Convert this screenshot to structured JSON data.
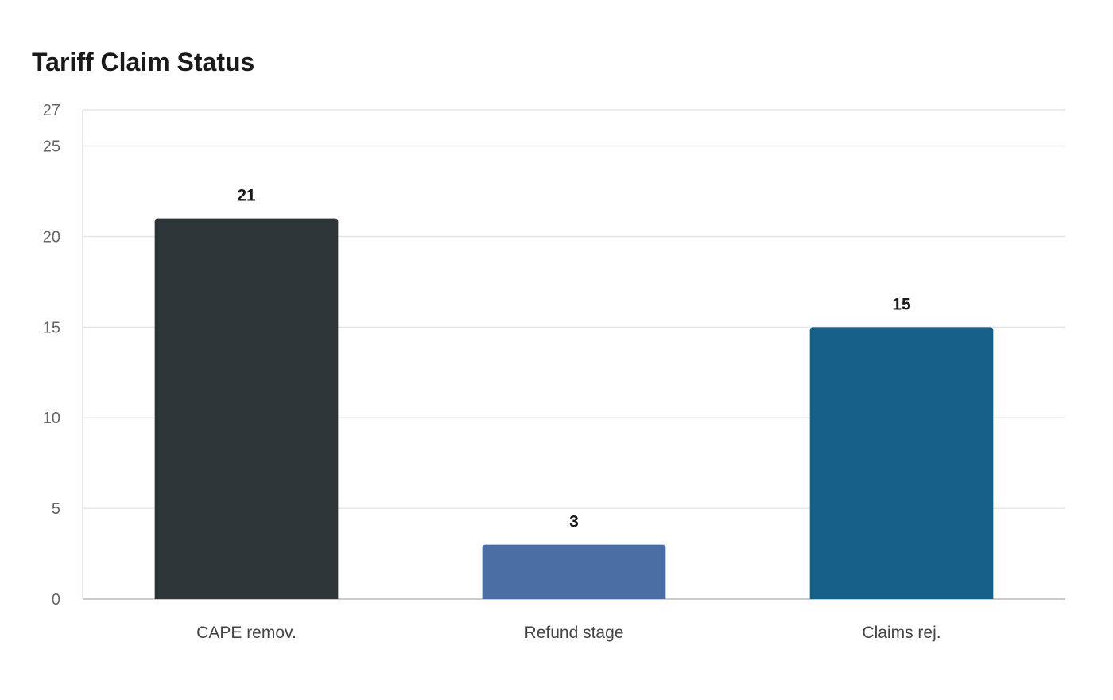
{
  "chart_data": {
    "type": "bar",
    "title": "Tariff Claim Status",
    "xlabel": "",
    "ylabel": "",
    "categories": [
      "CAPE remov.",
      "Refund stage",
      "Claims rej."
    ],
    "values": [
      21,
      3,
      15
    ],
    "colors": [
      "#2e3538",
      "#4a6da3",
      "#176188"
    ],
    "ylim": [
      0,
      27
    ],
    "yticks": [
      0,
      5,
      10,
      15,
      20,
      25,
      27
    ],
    "grid": true,
    "legend": "none"
  }
}
